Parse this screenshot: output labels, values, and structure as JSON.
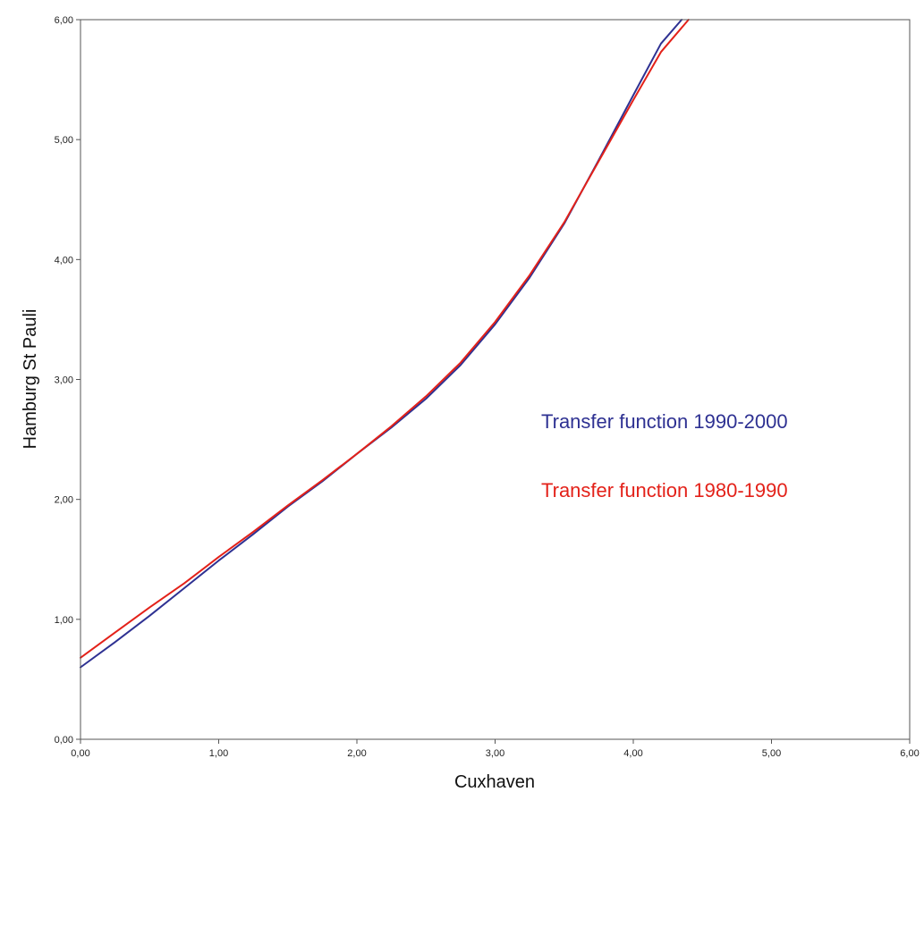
{
  "chart_data": {
    "type": "line",
    "xlabel": "Cuxhaven",
    "ylabel": "Hamburg St Pauli",
    "xlim": [
      0,
      6
    ],
    "ylim": [
      0,
      6
    ],
    "x_ticks": [
      "0,00",
      "1,00",
      "2,00",
      "3,00",
      "4,00",
      "5,00",
      "6,00"
    ],
    "y_ticks": [
      "0,00",
      "1,00",
      "2,00",
      "3,00",
      "4,00",
      "5,00",
      "6,00"
    ],
    "grid": false,
    "legend": "inline labels at right-center",
    "series": [
      {
        "name": "Transfer function 1990-2000",
        "color": "#2e3192",
        "x": [
          0.0,
          0.25,
          0.5,
          0.75,
          1.0,
          1.25,
          1.5,
          1.75,
          2.0,
          2.25,
          2.5,
          2.75,
          3.0,
          3.25,
          3.5,
          3.75,
          4.0,
          4.2,
          4.35
        ],
        "y": [
          0.6,
          0.81,
          1.03,
          1.26,
          1.49,
          1.71,
          1.94,
          2.15,
          2.38,
          2.6,
          2.84,
          3.12,
          3.46,
          3.85,
          4.3,
          4.83,
          5.37,
          5.8,
          6.0
        ]
      },
      {
        "name": "Transfer function 1980-1990",
        "color": "#e32119",
        "x": [
          0.0,
          0.25,
          0.5,
          0.75,
          1.0,
          1.25,
          1.5,
          1.75,
          2.0,
          2.25,
          2.5,
          2.75,
          3.0,
          3.25,
          3.5,
          3.75,
          4.0,
          4.2,
          4.4
        ],
        "y": [
          0.68,
          0.89,
          1.1,
          1.3,
          1.52,
          1.73,
          1.95,
          2.16,
          2.38,
          2.61,
          2.86,
          3.14,
          3.48,
          3.87,
          4.31,
          4.82,
          5.33,
          5.73,
          6.0
        ]
      }
    ]
  }
}
